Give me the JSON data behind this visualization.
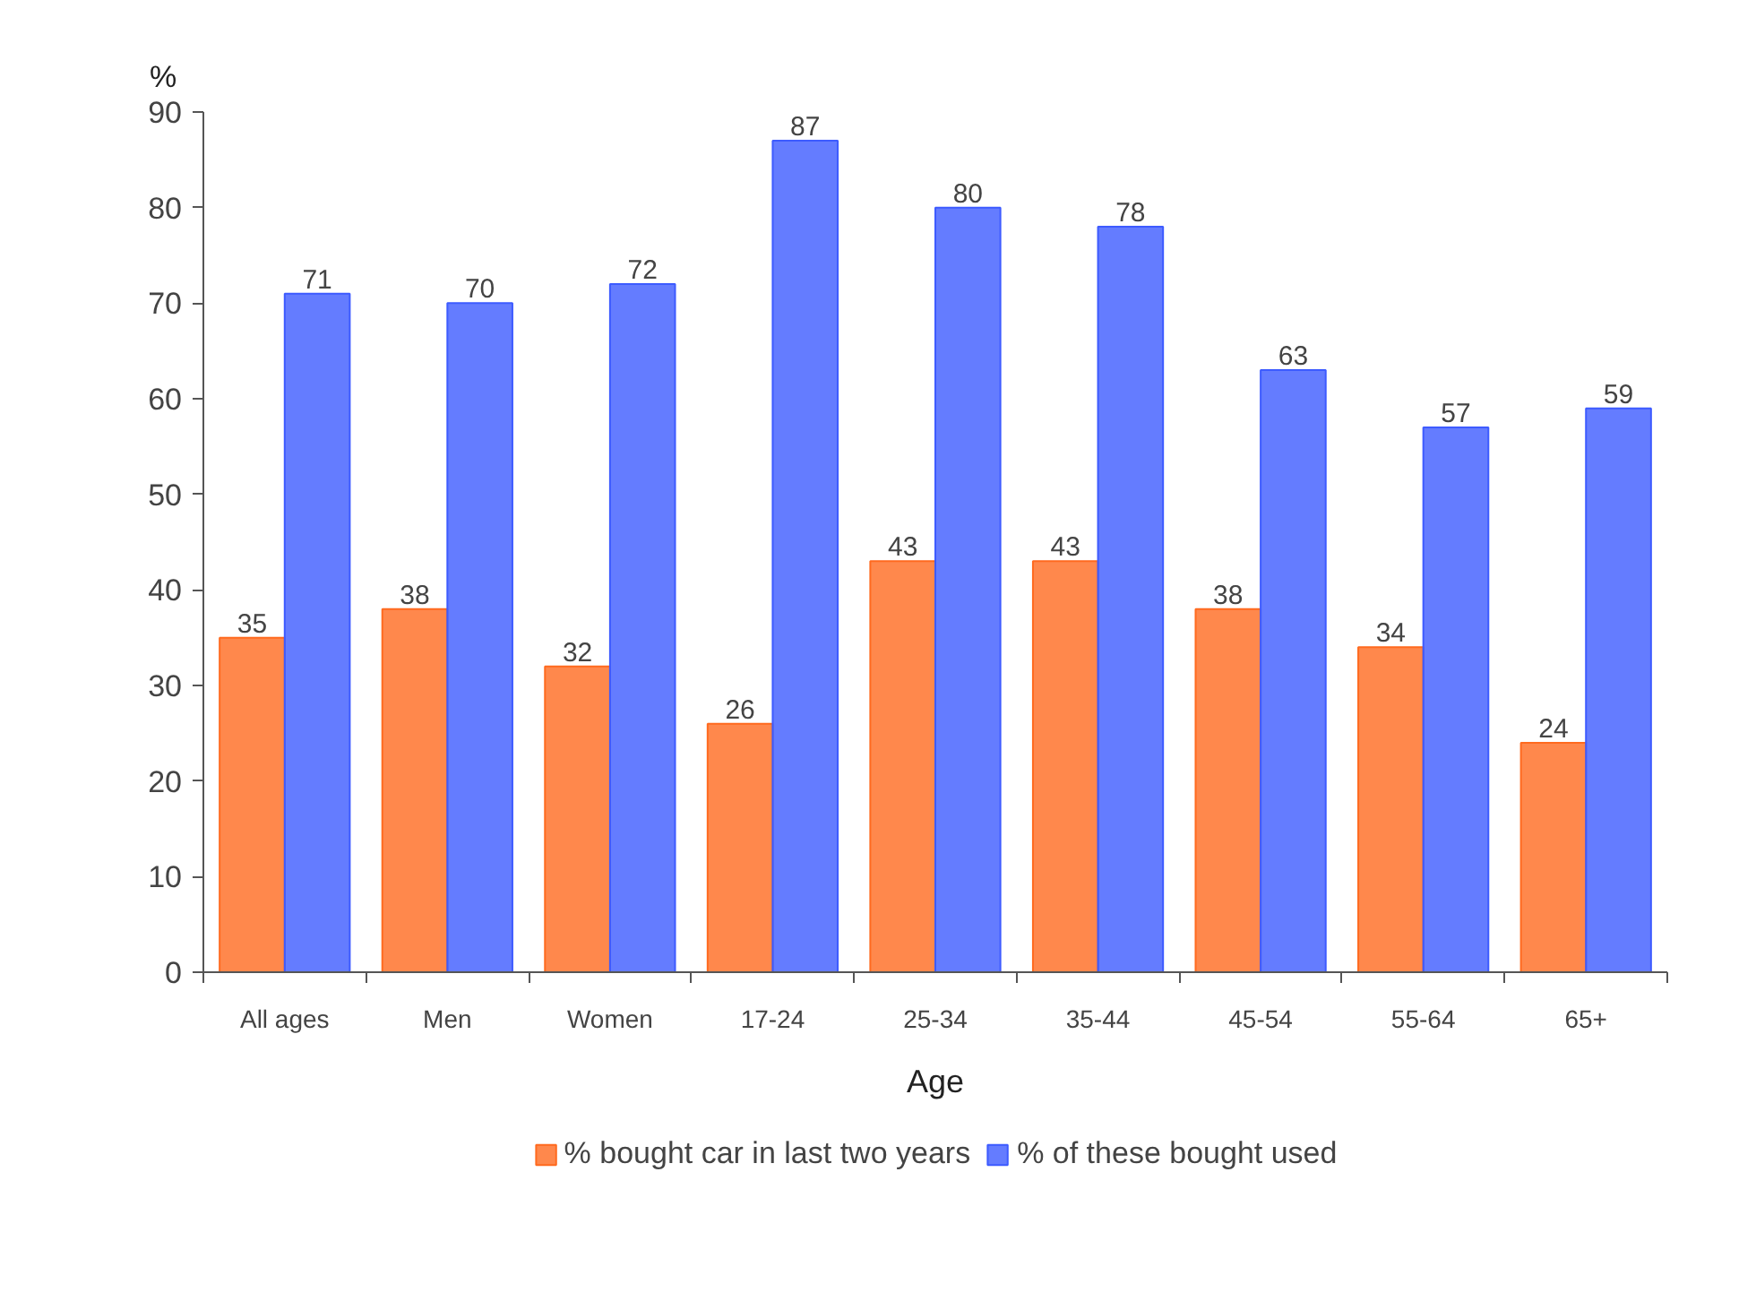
{
  "chart_data": {
    "type": "bar",
    "ylabel": "%",
    "xlabel": "Age",
    "categories": [
      "All ages",
      "Men",
      "Women",
      "17-24",
      "25-34",
      "35-44",
      "45-54",
      "55-64",
      "65+"
    ],
    "series": [
      {
        "name": "% bought car in last two years",
        "color": "#ff6a1f",
        "values": [
          35,
          38,
          32,
          26,
          43,
          43,
          38,
          34,
          24
        ]
      },
      {
        "name": "% of these bought used",
        "color": "#3d5bff",
        "values": [
          71,
          70,
          72,
          87,
          80,
          78,
          63,
          57,
          59
        ]
      }
    ],
    "ylim": [
      0,
      90
    ],
    "yticks": [
      0,
      10,
      20,
      30,
      40,
      50,
      60,
      70,
      80,
      90
    ],
    "grid": false,
    "legend": "bottom",
    "data_labels": true
  }
}
